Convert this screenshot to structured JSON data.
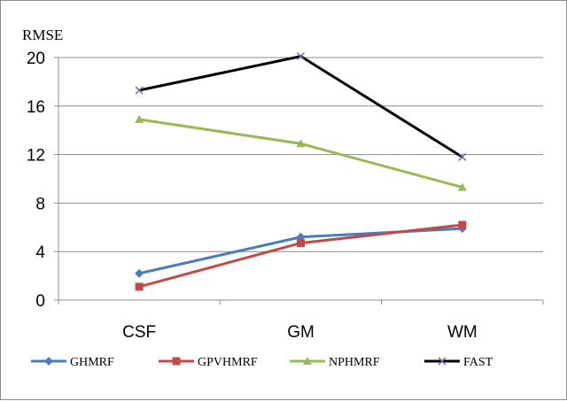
{
  "chart_data": {
    "type": "line",
    "title": "",
    "xlabel": "",
    "ylabel": "RMSE",
    "categories": [
      "CSF",
      "GM",
      "WM"
    ],
    "ylim": [
      0,
      20
    ],
    "yticks": [
      0,
      4,
      8,
      12,
      16,
      20
    ],
    "grid": true,
    "legend_position": "bottom",
    "series": [
      {
        "name": "GHMRF",
        "values": [
          2.2,
          5.2,
          5.9
        ],
        "color": "#4a7ebb",
        "marker": "diamond"
      },
      {
        "name": "GPVHMRF",
        "values": [
          1.1,
          4.7,
          6.2
        ],
        "color": "#be4b48",
        "marker": "square"
      },
      {
        "name": "NPHMRF",
        "values": [
          14.9,
          12.9,
          9.3
        ],
        "color": "#98b954",
        "marker": "triangle"
      },
      {
        "name": "FAST",
        "values": [
          17.3,
          20.1,
          11.8
        ],
        "color": "#000000",
        "marker": "x"
      }
    ]
  }
}
